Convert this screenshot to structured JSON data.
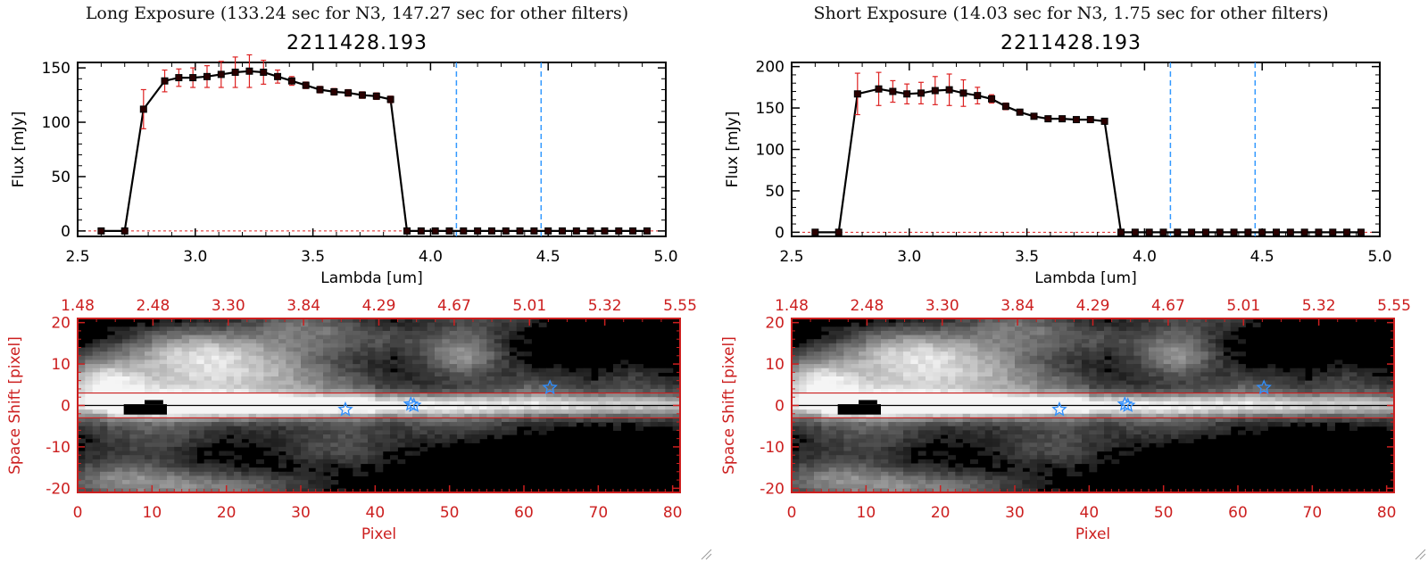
{
  "colors": {
    "spectrum_line": "#000000",
    "error_bar": "#dd2222",
    "guide_line": "#3399ff",
    "image_frame": "#cc1f1f",
    "star_marker": "#2f8fff"
  },
  "icons": [
    "star-icon",
    "resize-grip-icon"
  ],
  "panels": [
    {
      "heading": "Long Exposure (133.24 sec for N3, 147.27 sec for other filters)",
      "object_id": "2211428.193",
      "spectrum": {
        "xlabel": "Lambda [um]",
        "ylabel": "Flux [mJy]",
        "xlim": [
          2.5,
          5.0
        ],
        "ylim": [
          -5,
          155
        ],
        "x_ticks": [
          "2.5",
          "3.0",
          "3.5",
          "4.0",
          "4.5",
          "5.0"
        ],
        "y_ticks": [
          "0",
          "50",
          "100",
          "150"
        ]
      },
      "image": {
        "xlabel": "Pixel",
        "ylabel": "Space Shift [pixel]",
        "x_ticks": [
          "0",
          "10",
          "20",
          "30",
          "40",
          "50",
          "60",
          "70",
          "80"
        ],
        "y_ticks": [
          "20",
          "10",
          "0",
          "-10",
          "-20"
        ],
        "top_ticks": [
          "1.48",
          "2.48",
          "3.30",
          "3.84",
          "4.29",
          "4.67",
          "5.01",
          "5.32",
          "5.55"
        ]
      }
    },
    {
      "heading": "Short Exposure (14.03 sec for N3, 1.75 sec for other filters)",
      "object_id": "2211428.193",
      "spectrum": {
        "xlabel": "Lambda [um]",
        "ylabel": "Flux [mJy]",
        "xlim": [
          2.5,
          5.0
        ],
        "ylim": [
          -5,
          205
        ],
        "x_ticks": [
          "2.5",
          "3.0",
          "3.5",
          "4.0",
          "4.5",
          "5.0"
        ],
        "y_ticks": [
          "0",
          "50",
          "100",
          "150",
          "200"
        ]
      },
      "image": {
        "xlabel": "Pixel",
        "ylabel": "Space Shift [pixel]",
        "x_ticks": [
          "0",
          "10",
          "20",
          "30",
          "40",
          "50",
          "60",
          "70",
          "80"
        ],
        "y_ticks": [
          "20",
          "10",
          "0",
          "-10",
          "-20"
        ],
        "top_ticks": [
          "1.48",
          "2.48",
          "3.30",
          "3.84",
          "4.29",
          "4.67",
          "5.01",
          "5.32",
          "5.55"
        ]
      }
    }
  ],
  "chart_data": [
    {
      "type": "line",
      "title": "2211428.193",
      "subtitle": "Long Exposure (133.24 sec for N3, 147.27 sec for other filters)",
      "xlabel": "Lambda [um]",
      "ylabel": "Flux [mJy]",
      "xlim": [
        2.5,
        5.0
      ],
      "ylim": [
        -5,
        155
      ],
      "x": [
        2.6,
        2.7,
        2.78,
        2.87,
        2.93,
        2.99,
        3.05,
        3.11,
        3.17,
        3.23,
        3.29,
        3.35,
        3.41,
        3.47,
        3.53,
        3.59,
        3.65,
        3.71,
        3.77,
        3.83,
        3.9,
        3.96,
        4.02,
        4.08,
        4.14,
        4.2,
        4.26,
        4.32,
        4.38,
        4.44,
        4.5,
        4.56,
        4.62,
        4.68,
        4.74,
        4.8,
        4.86,
        4.92
      ],
      "y": [
        0,
        0,
        112,
        138,
        141,
        141,
        142,
        144,
        146,
        147,
        146,
        142,
        138,
        134,
        130,
        128,
        127,
        125,
        124,
        121,
        0,
        0,
        0,
        0,
        0,
        0,
        0,
        0,
        0,
        0,
        0,
        0,
        0,
        0,
        0,
        0,
        0,
        0
      ],
      "errors": [
        0,
        0,
        18,
        10,
        8,
        9,
        10,
        12,
        14,
        15,
        11,
        6,
        4,
        3,
        3,
        3,
        3,
        3,
        3,
        3,
        0,
        0,
        0,
        0,
        0,
        0,
        0,
        0,
        0,
        0,
        0,
        0,
        0,
        0,
        0,
        0,
        0,
        0
      ],
      "vertical_lines": [
        4.11,
        4.47
      ],
      "image_stars": [
        [
          36,
          -1
        ],
        [
          44.8,
          0.3
        ],
        [
          45.2,
          0
        ],
        [
          63.5,
          4.3
        ]
      ],
      "image_aperture": [
        -3,
        3
      ],
      "image_xlim": [
        0,
        81
      ],
      "image_ylim": [
        -21,
        21
      ]
    },
    {
      "type": "line",
      "title": "2211428.193",
      "subtitle": "Short Exposure (14.03 sec for N3, 1.75 sec for other filters)",
      "xlabel": "Lambda [um]",
      "ylabel": "Flux [mJy]",
      "xlim": [
        2.5,
        5.0
      ],
      "ylim": [
        -5,
        205
      ],
      "x": [
        2.6,
        2.7,
        2.78,
        2.87,
        2.93,
        2.99,
        3.05,
        3.11,
        3.17,
        3.23,
        3.29,
        3.35,
        3.41,
        3.47,
        3.53,
        3.59,
        3.65,
        3.71,
        3.77,
        3.83,
        3.9,
        3.96,
        4.02,
        4.08,
        4.14,
        4.2,
        4.26,
        4.32,
        4.38,
        4.44,
        4.5,
        4.56,
        4.62,
        4.68,
        4.74,
        4.8,
        4.86,
        4.92
      ],
      "y": [
        0,
        0,
        167,
        173,
        170,
        167,
        168,
        171,
        172,
        168,
        165,
        161,
        152,
        145,
        140,
        137,
        137,
        136,
        136,
        134,
        0,
        0,
        0,
        0,
        0,
        0,
        0,
        0,
        0,
        0,
        0,
        0,
        0,
        0,
        0,
        0,
        0,
        0
      ],
      "errors": [
        0,
        0,
        25,
        20,
        13,
        12,
        13,
        17,
        19,
        16,
        10,
        5,
        4,
        3,
        3,
        3,
        3,
        3,
        3,
        3,
        0,
        0,
        0,
        0,
        0,
        0,
        0,
        0,
        0,
        0,
        0,
        0,
        0,
        0,
        0,
        0,
        0,
        0
      ],
      "vertical_lines": [
        4.11,
        4.47
      ],
      "image_stars": [
        [
          36,
          -1
        ],
        [
          44.8,
          0.3
        ],
        [
          45.2,
          0
        ],
        [
          63.5,
          4.3
        ]
      ],
      "image_aperture": [
        -3,
        3
      ],
      "image_xlim": [
        0,
        81
      ],
      "image_ylim": [
        -21,
        21
      ]
    }
  ]
}
